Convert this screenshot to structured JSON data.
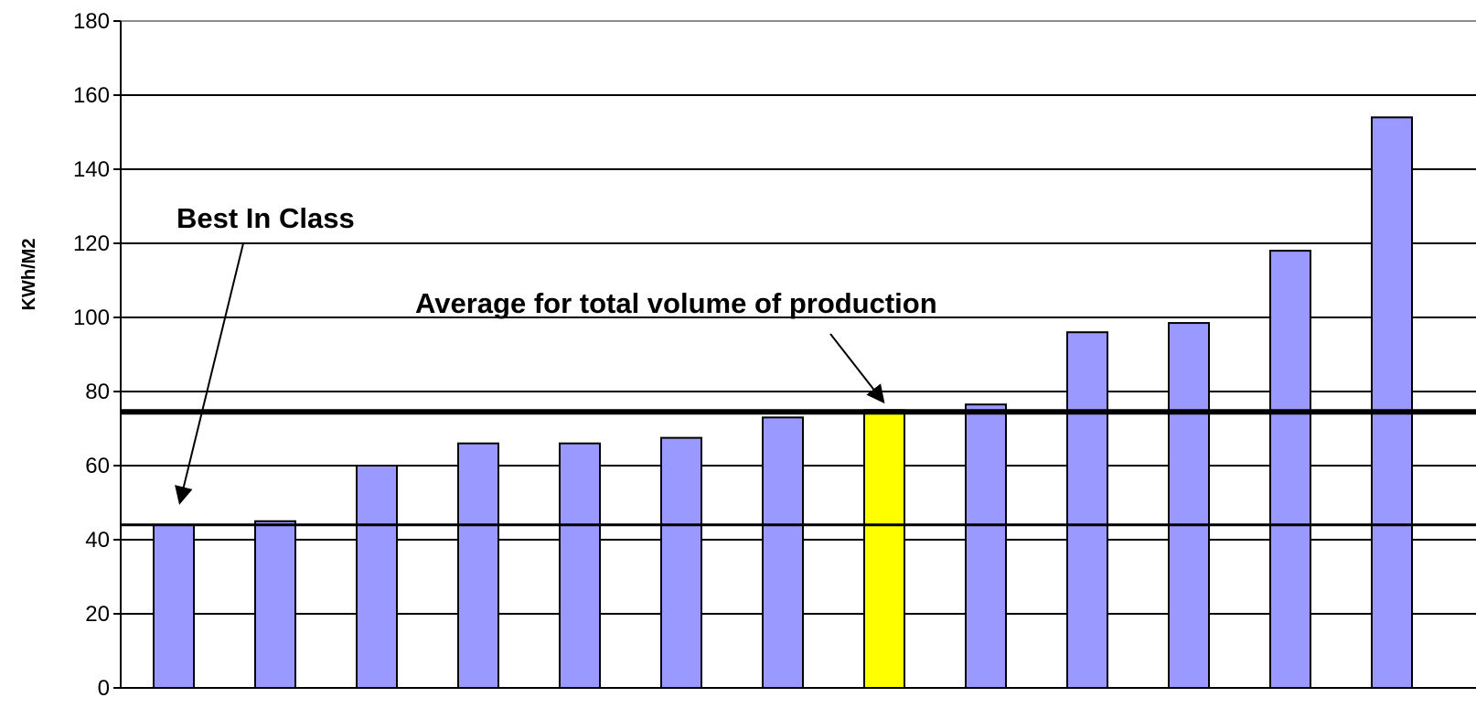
{
  "chart_data": {
    "type": "bar",
    "ylabel": "KWh/M2",
    "ylim": [
      0,
      180
    ],
    "yticks": [
      0,
      20,
      40,
      60,
      80,
      100,
      120,
      140,
      160,
      180
    ],
    "grid": true,
    "categories": [
      "",
      "",
      "",
      "",
      "",
      "",
      "",
      "",
      "",
      "",
      "",
      "",
      ""
    ],
    "values": [
      44,
      45,
      60,
      66,
      66,
      67.5,
      73,
      75,
      76.5,
      96,
      98.5,
      118,
      154
    ],
    "highlight_index": 7,
    "colors": {
      "bar": "#9999ff",
      "highlight_bar": "#ffff00",
      "bar_edge": "#000000",
      "gridline": "#000000"
    },
    "reference_lines": [
      {
        "value": 44,
        "label": "Best In Class"
      },
      {
        "value": 74.5,
        "label": "Average for total volume of production"
      }
    ],
    "annotations": [
      {
        "text": "Best In Class",
        "points_to_bar": 0
      },
      {
        "text": "Average for total volume of production",
        "points_to_bar": 7
      }
    ]
  }
}
